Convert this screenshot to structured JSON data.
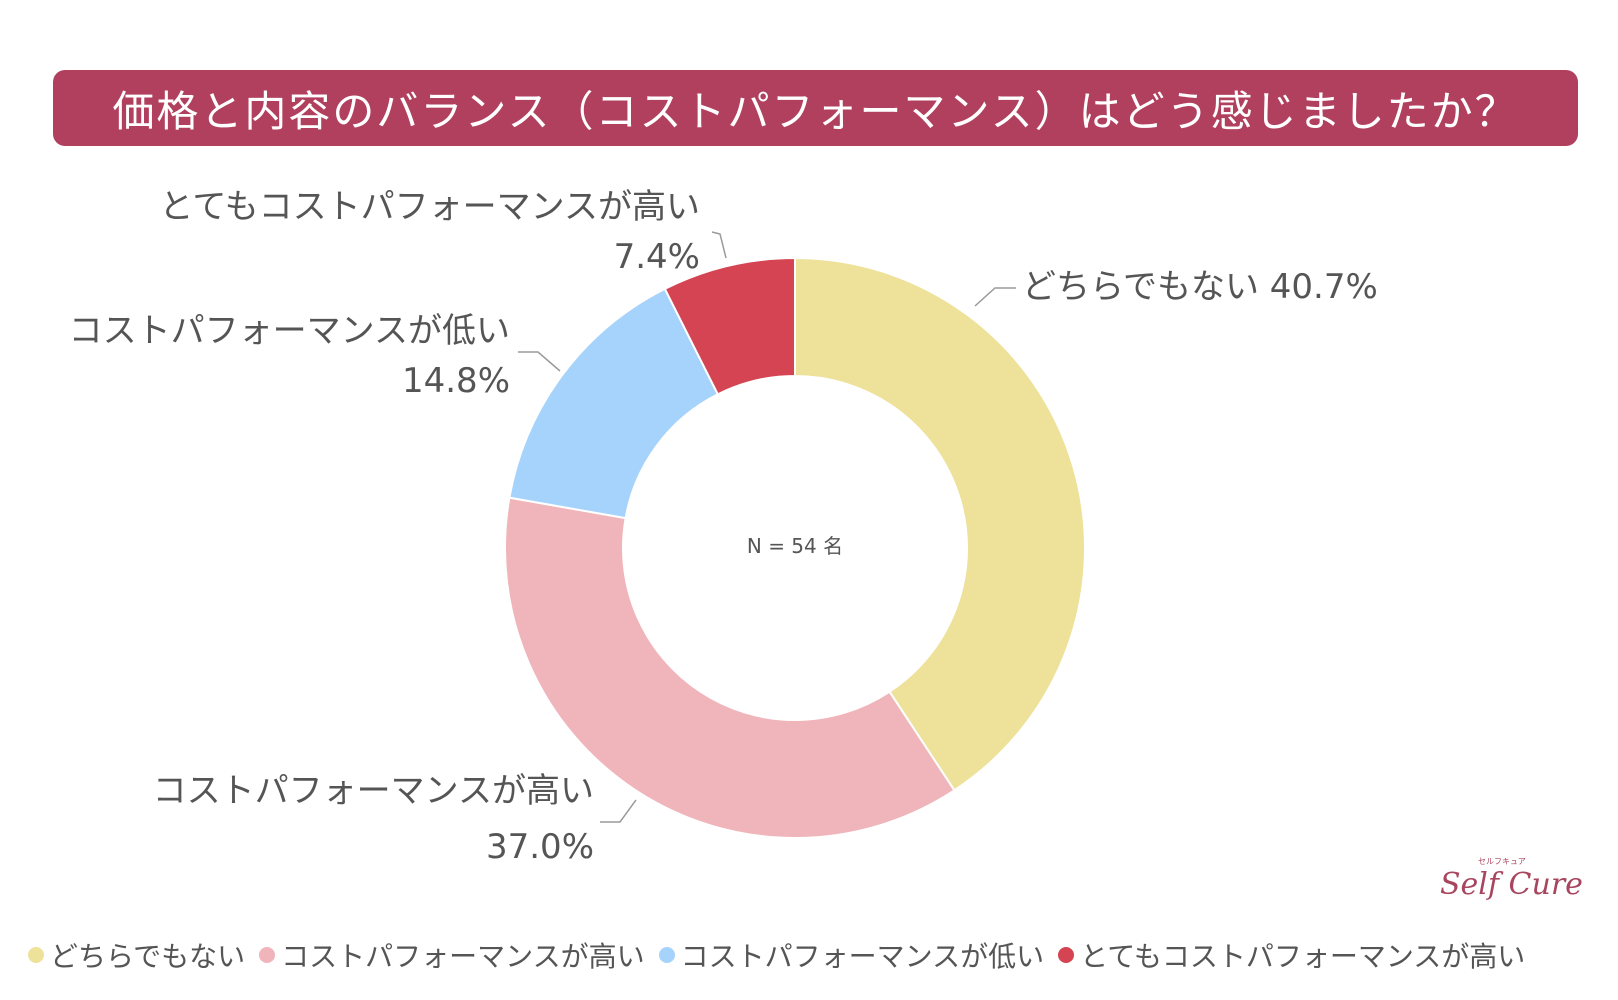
{
  "title": "価格と内容のバランス（コストパフォーマンス）はどう感じましたか？",
  "logo": {
    "text": "Self Cure",
    "ruby": "セルフキュア"
  },
  "center_text": "N = 54 名",
  "chart_data": {
    "type": "pie",
    "subtype": "donut",
    "title": "価格と内容のバランス（コストパフォーマンス）はどう感じましたか？",
    "n": 54,
    "series": [
      {
        "name": "どちらでもない",
        "value": 40.7,
        "label": "40.7%",
        "color": "#eee199"
      },
      {
        "name": "コストパフォーマンスが高い",
        "value": 37.0,
        "label": "37.0%",
        "color": "#f0b5ba"
      },
      {
        "name": "コストパフォーマンスが低い",
        "value": 14.8,
        "label": "14.8%",
        "color": "#a6d3fb"
      },
      {
        "name": "とてもコストパフォーマンスが高い",
        "value": 7.4,
        "label": "7.4%",
        "color": "#d44452"
      }
    ],
    "start_angle": "12 o'clock",
    "direction": "clockwise",
    "legend_position": "bottom"
  },
  "colors": {
    "title_bg": "#b1405e",
    "text": "#555555",
    "brand": "#a8455f"
  }
}
